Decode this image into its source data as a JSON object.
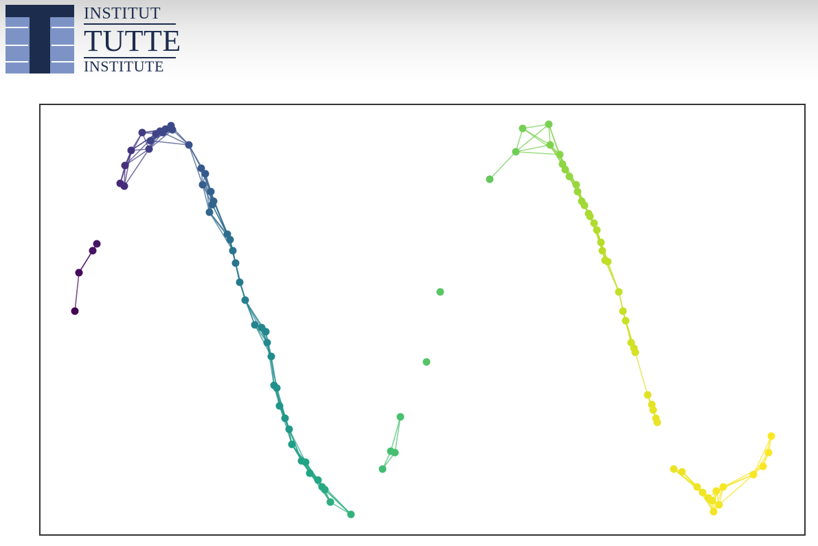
{
  "logo": {
    "line1": "INSTITUT",
    "line2": "TUTTE",
    "line3": "INSTITUTE",
    "colors": {
      "dark": "#1c2c4c",
      "light": "#7d93c6"
    }
  },
  "chart_data": {
    "type": "scatter",
    "style": "graph embedding with edges",
    "axes_visible": false,
    "grid": false,
    "colormap": "viridis",
    "xlim": [
      0,
      1
    ],
    "ylim": [
      0,
      1
    ],
    "points": [
      [
        0.045,
        0.52,
        0.0
      ],
      [
        0.051,
        0.61,
        0.01
      ],
      [
        0.069,
        0.66,
        0.02
      ],
      [
        0.074,
        0.675,
        0.025
      ],
      [
        0.104,
        0.82,
        0.05
      ],
      [
        0.11,
        0.81,
        0.055
      ],
      [
        0.111,
        0.85,
        0.06
      ],
      [
        0.12,
        0.895,
        0.07
      ],
      [
        0.137,
        0.95,
        0.08
      ],
      [
        0.143,
        0.905,
        0.085
      ],
      [
        0.152,
        0.94,
        0.09
      ],
      [
        0.155,
        0.93,
        0.095
      ],
      [
        0.165,
        0.948,
        0.1
      ],
      [
        0.175,
        0.948,
        0.105
      ],
      [
        0.18,
        0.945,
        0.11
      ],
      [
        0.196,
        0.956,
        0.115
      ],
      [
        0.214,
        0.91,
        0.12
      ],
      [
        0.207,
        0.915,
        0.125
      ],
      [
        0.23,
        0.855,
        0.16
      ],
      [
        0.236,
        0.84,
        0.165
      ],
      [
        0.23,
        0.815,
        0.17
      ],
      [
        0.245,
        0.795,
        0.175
      ],
      [
        0.25,
        0.775,
        0.18
      ],
      [
        0.243,
        0.76,
        0.185
      ],
      [
        0.247,
        0.748,
        0.19
      ],
      [
        0.258,
        0.735,
        0.195
      ],
      [
        0.262,
        0.71,
        0.2
      ],
      [
        0.263,
        0.7,
        0.205
      ],
      [
        0.235,
        0.895,
        0.15
      ],
      [
        0.225,
        0.88,
        0.14
      ],
      [
        0.243,
        0.735,
        0.196
      ],
      [
        0.255,
        0.725,
        0.198
      ],
      [
        0.256,
        0.72,
        0.2
      ],
      [
        0.257,
        0.718,
        0.2
      ],
      [
        0.245,
        0.737,
        0.197
      ],
      [
        0.248,
        0.73,
        0.199
      ],
      [
        0.246,
        0.75,
        0.2
      ],
      [
        0.247,
        0.755,
        0.2
      ],
      [
        0.248,
        0.78,
        0.2
      ],
      [
        0.249,
        0.74,
        0.2
      ],
      [
        0.245,
        0.72,
        0.2
      ],
      [
        0.24,
        0.745,
        0.2
      ],
      [
        0.25,
        0.738,
        0.2
      ],
      [
        0.251,
        0.733,
        0.2
      ],
      [
        0.252,
        0.731,
        0.2
      ],
      [
        0.253,
        0.729,
        0.2
      ],
      [
        0.253,
        0.727,
        0.2
      ],
      [
        0.254,
        0.726,
        0.2
      ],
      [
        0.244,
        0.742,
        0.2
      ],
      [
        0.243,
        0.744,
        0.2
      ],
      [
        0.242,
        0.746,
        0.2
      ],
      [
        0.241,
        0.748,
        0.2
      ],
      [
        0.24,
        0.75,
        0.2
      ],
      [
        0.26,
        0.72,
        0.2
      ],
      [
        0.27,
        0.69,
        0.2
      ],
      [
        0.262,
        0.705,
        0.2
      ],
      [
        0.264,
        0.71,
        0.2
      ],
      [
        0.266,
        0.715,
        0.2
      ],
      [
        0.268,
        0.7,
        0.2
      ],
      [
        0.265,
        0.697,
        0.2
      ]
    ]
  }
}
